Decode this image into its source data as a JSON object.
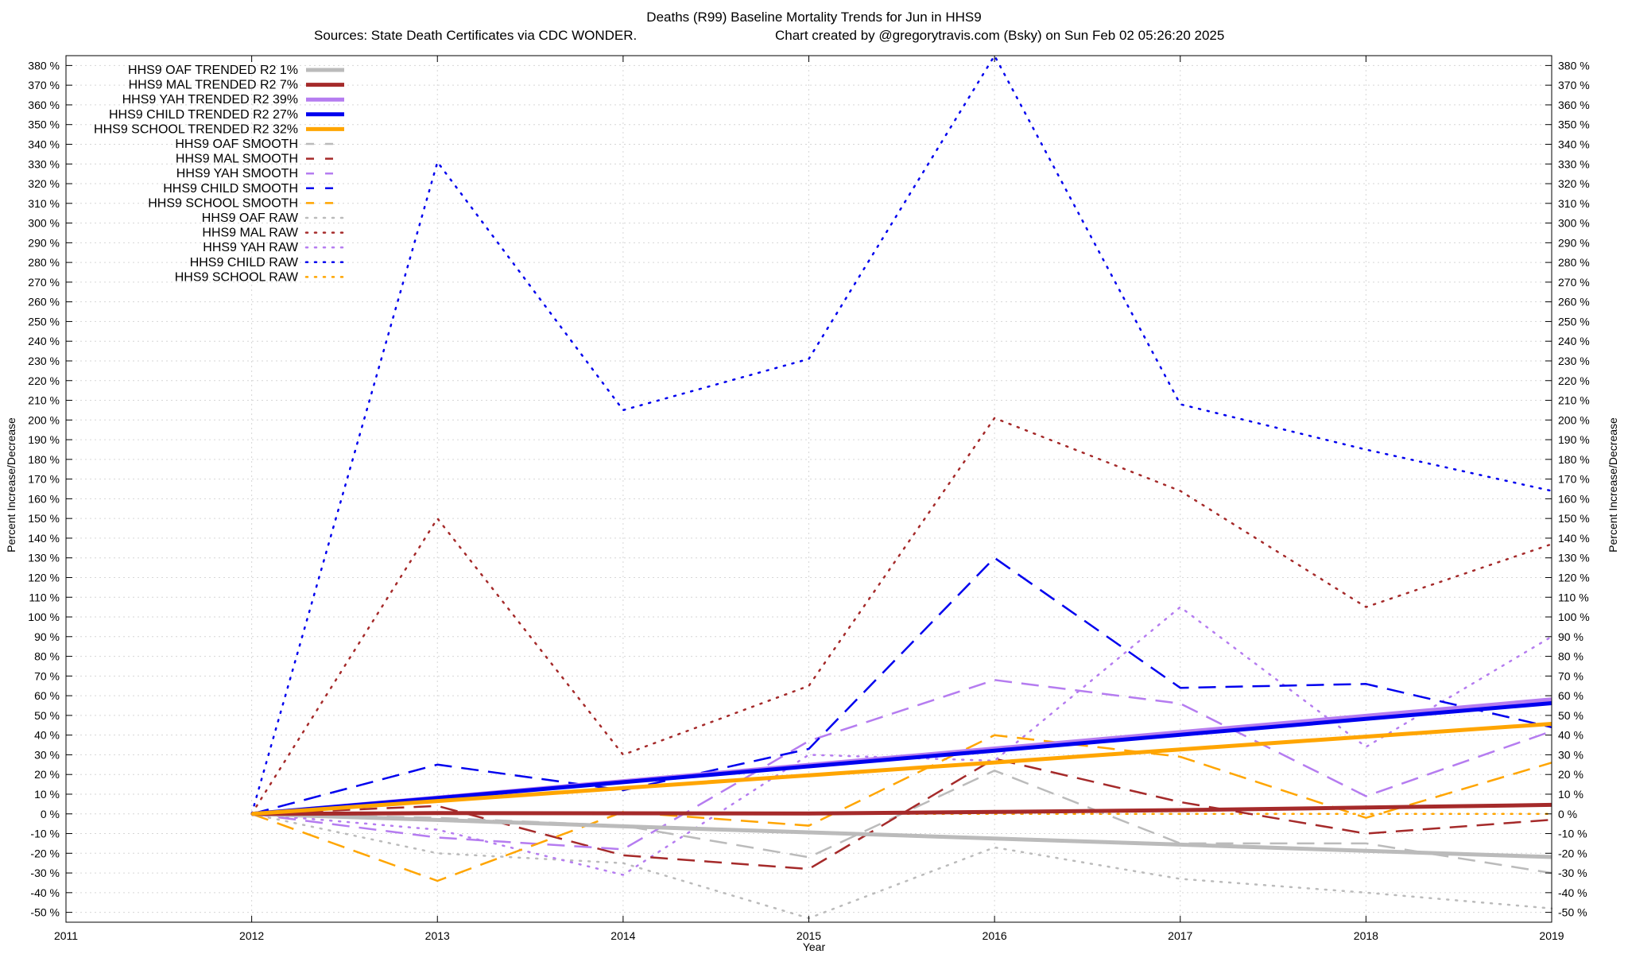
{
  "chart_data": {
    "type": "line",
    "title": "Deaths (R99)  Baseline Mortality Trends for Jun in HHS9",
    "subtitle_left": "Sources: State Death Certificates via CDC WONDER.",
    "subtitle_right": "Chart created by @gregorytravis.com (Bsky) on Sun Feb 02 05:26:20 2025",
    "xlabel": "Year",
    "ylabel": "Percent Increase/Decrease",
    "ylabel_right": "Percent Increase/Decrease",
    "xlim": [
      2011,
      2019
    ],
    "ylim": [
      -55,
      385
    ],
    "x_ticks": [
      2011,
      2012,
      2013,
      2014,
      2015,
      2016,
      2017,
      2018,
      2019
    ],
    "y_ticks": [
      -50,
      -40,
      -30,
      -20,
      -10,
      0,
      10,
      20,
      30,
      40,
      50,
      60,
      70,
      80,
      90,
      100,
      110,
      120,
      130,
      140,
      150,
      160,
      170,
      180,
      190,
      200,
      210,
      220,
      230,
      240,
      250,
      260,
      270,
      280,
      290,
      300,
      310,
      320,
      330,
      340,
      350,
      360,
      370,
      380
    ],
    "y_tick_suffix": " %",
    "grid": true,
    "legend_position": "top-left",
    "x": [
      2012,
      2013,
      2014,
      2015,
      2016,
      2017,
      2018,
      2019
    ],
    "series": [
      {
        "name": "HHS9 OAF TRENDED R2",
        "r2": "1%",
        "style": "solid",
        "width": 5,
        "color": "#bbbbbb",
        "values": [
          0,
          -3.1,
          -6.3,
          -9.4,
          -12.5,
          -15.6,
          -18.8,
          -21.9
        ]
      },
      {
        "name": "HHS9 MAL TRENDED R2",
        "r2": "7%",
        "style": "solid",
        "width": 5,
        "color": "#a52a2a",
        "values": [
          0,
          0.4,
          0.3,
          0.2,
          1.0,
          1.9,
          3.2,
          4.6
        ]
      },
      {
        "name": "HHS9 YAH TRENDED R2",
        "r2": "39%",
        "style": "solid",
        "width": 5,
        "color": "#b57cf0",
        "values": [
          0,
          8.3,
          16.6,
          24.9,
          33.2,
          41.5,
          49.8,
          58.1
        ]
      },
      {
        "name": "HHS9 CHILD TRENDED R2",
        "r2": "27%",
        "style": "solid",
        "width": 5,
        "color": "#0000ee",
        "values": [
          0,
          8.0,
          16.1,
          24.1,
          32.1,
          40.2,
          48.2,
          56.2
        ]
      },
      {
        "name": "HHS9 SCHOOL TRENDED R2",
        "r2": "32%",
        "style": "solid",
        "width": 5,
        "color": "#ffa500",
        "values": [
          0,
          6.5,
          13.1,
          19.6,
          26.1,
          32.7,
          39.2,
          45.7
        ]
      },
      {
        "name": "HHS9 OAF SMOOTH",
        "r2": "",
        "style": "dashed",
        "width": 2.5,
        "color": "#bbbbbb",
        "values": [
          0,
          -2,
          -6,
          -22,
          22,
          -15,
          -15,
          -30
        ]
      },
      {
        "name": "HHS9 MAL SMOOTH",
        "r2": "",
        "style": "dashed",
        "width": 2.5,
        "color": "#a52a2a",
        "values": [
          0,
          4,
          -21,
          -28,
          28,
          6,
          -10,
          -3
        ]
      },
      {
        "name": "HHS9 YAH SMOOTH",
        "r2": "",
        "style": "dashed",
        "width": 2.5,
        "color": "#b57cf0",
        "values": [
          0,
          -12,
          -18,
          37,
          68,
          56,
          9,
          42
        ]
      },
      {
        "name": "HHS9 CHILD SMOOTH",
        "r2": "",
        "style": "dashed",
        "width": 2.5,
        "color": "#0000ee",
        "values": [
          0,
          25,
          12,
          33,
          130,
          64,
          66,
          44
        ]
      },
      {
        "name": "HHS9 SCHOOL SMOOTH",
        "r2": "",
        "style": "dashed",
        "width": 2.5,
        "color": "#ffa500",
        "values": [
          0,
          -34,
          1,
          -6,
          40,
          29,
          -2,
          26
        ]
      },
      {
        "name": "HHS9 OAF RAW",
        "r2": "",
        "style": "dotted",
        "width": 2.5,
        "color": "#bbbbbb",
        "values": [
          0,
          -20,
          -25,
          -53,
          -17,
          -33,
          -40,
          -48
        ]
      },
      {
        "name": "HHS9 MAL RAW",
        "r2": "",
        "style": "dotted",
        "width": 2.5,
        "color": "#a52a2a",
        "values": [
          0,
          150,
          30,
          65,
          201,
          164,
          105,
          137
        ]
      },
      {
        "name": "HHS9 YAH RAW",
        "r2": "",
        "style": "dotted",
        "width": 2.5,
        "color": "#b57cf0",
        "values": [
          0,
          -8,
          -31,
          30,
          27,
          105,
          34,
          90
        ]
      },
      {
        "name": "HHS9 CHILD RAW",
        "r2": "",
        "style": "dotted",
        "width": 2.5,
        "color": "#0000ee",
        "values": [
          0,
          331,
          205,
          231,
          385,
          208,
          185,
          164
        ]
      },
      {
        "name": "HHS9 SCHOOL RAW",
        "r2": "",
        "style": "dotted",
        "width": 2.5,
        "color": "#ffa500",
        "values": [
          0,
          0,
          0,
          0,
          0,
          0,
          0,
          0
        ]
      }
    ]
  }
}
